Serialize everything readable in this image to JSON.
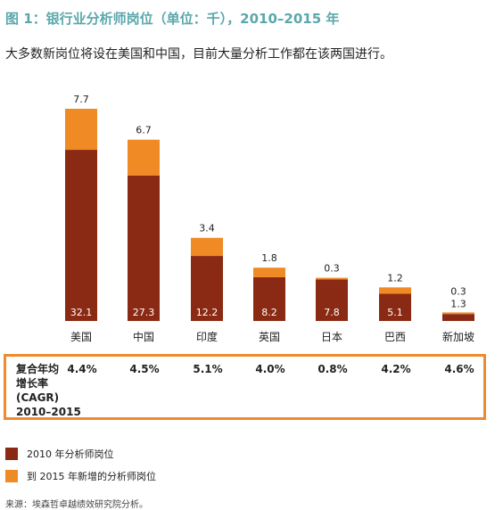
{
  "title": "图 1：银行业分析师岗位（单位：千），2010–2015 年",
  "subtitle": "大多数新岗位将设在美国和中国，目前大量分析工作都在该两国进行。",
  "colors": {
    "base": "#8b2a14",
    "new": "#f08a24",
    "accent": "#5aa8ac",
    "box": "#ef8a2e"
  },
  "chart_data": {
    "type": "bar",
    "stacked": true,
    "categories": [
      "美国",
      "中国",
      "印度",
      "英国",
      "日本",
      "巴西",
      "新加坡"
    ],
    "series": [
      {
        "name": "2010 年分析师岗位",
        "values": [
          32.1,
          27.3,
          12.2,
          8.2,
          7.8,
          5.1,
          1.3
        ]
      },
      {
        "name": "到 2015 年新增的分析师岗位",
        "values": [
          7.7,
          6.7,
          3.4,
          1.8,
          0.3,
          1.2,
          0.3
        ]
      }
    ],
    "base_labels": [
      "32.1",
      "27.3",
      "12.2",
      "8.2",
      "7.8",
      "5.1",
      "1.3"
    ],
    "top_labels": [
      "7.7",
      "6.7",
      "3.4",
      "1.8",
      "0.3",
      "1.2",
      "0.3"
    ],
    "ylim": [
      0,
      40
    ]
  },
  "cagr": {
    "label_lines": [
      "复合年均",
      "增长率",
      "(CAGR)",
      "2010–2015"
    ],
    "values": [
      "4.4%",
      "4.5%",
      "5.1%",
      "4.0%",
      "0.8%",
      "4.2%",
      "4.6%"
    ]
  },
  "legend": [
    {
      "label": "2010 年分析师岗位"
    },
    {
      "label": "到 2015 年新增的分析师岗位"
    }
  ],
  "source": "来源：埃森哲卓越绩效研究院分析。"
}
